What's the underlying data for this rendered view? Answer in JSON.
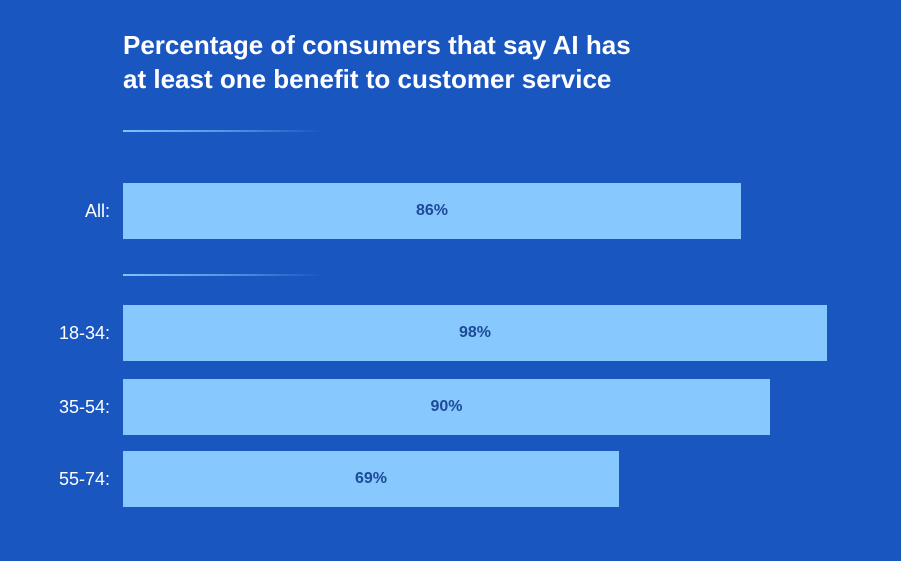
{
  "chart_data": {
    "type": "bar",
    "orientation": "horizontal",
    "title_lines": [
      "Percentage of consumers that say AI has",
      "at least one benefit to customer service"
    ],
    "categories": [
      "All:",
      "18-34:",
      "35-54:",
      "55-74:"
    ],
    "values": [
      86,
      98,
      90,
      69
    ],
    "value_labels": [
      "86%",
      "98%",
      "90%",
      "69%"
    ],
    "unit": "%",
    "xlim": [
      0,
      98
    ],
    "grid": false,
    "colors": {
      "background": "#1a56c0",
      "bar": "#87c9ff",
      "value_text": "#1d4a98",
      "label_text": "#ffffff"
    }
  }
}
